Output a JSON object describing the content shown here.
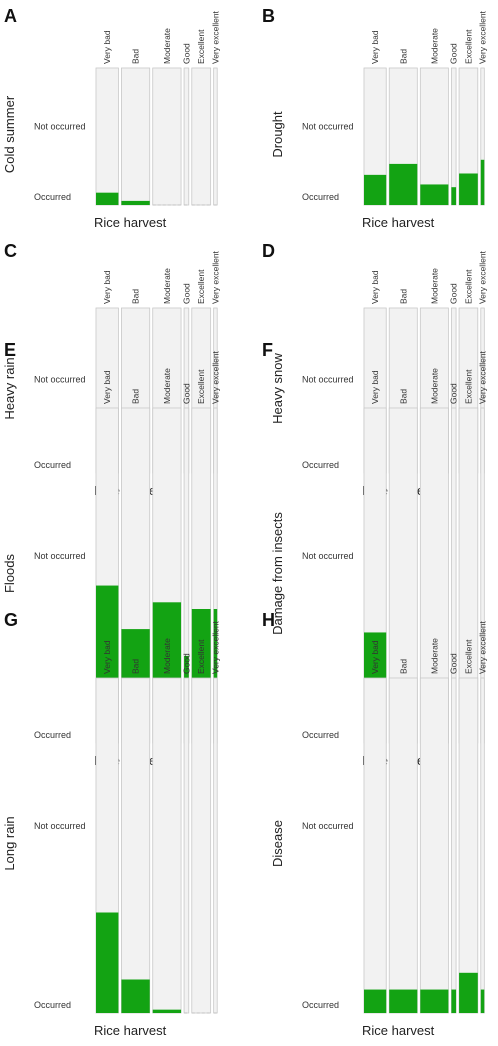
{
  "x_axis_label": "Rice harvest",
  "y_categories": {
    "top": "Not occurred",
    "bottom": "Occurred"
  },
  "colors": {
    "occurred": "#13a313",
    "not_occurred": "#f2f2f2",
    "cell_border": "#c8c8c8"
  },
  "chart_data": [
    {
      "type": "mosaic",
      "panel": "A",
      "ylabel": "Cold summer",
      "xlabel": "Rice harvest",
      "categories": [
        "Very bad",
        "Bad",
        "Moderate",
        "Good",
        "Excellent",
        "Very excellent"
      ],
      "category_share": [
        0.19,
        0.24,
        0.24,
        0.04,
        0.16,
        0.03
      ],
      "occurred_fraction": [
        0.09,
        0.03,
        0.0,
        0.0,
        0.0,
        0.0
      ],
      "series_labels": [
        "Not occurred",
        "Occurred"
      ]
    },
    {
      "type": "mosaic",
      "panel": "B",
      "ylabel": "Drought",
      "xlabel": "Rice harvest",
      "categories": [
        "Very bad",
        "Bad",
        "Moderate",
        "Good",
        "Excellent",
        "Very excellent"
      ],
      "category_share": [
        0.19,
        0.24,
        0.24,
        0.04,
        0.16,
        0.03
      ],
      "occurred_fraction": [
        0.22,
        0.3,
        0.15,
        0.13,
        0.23,
        0.33
      ],
      "series_labels": [
        "Not occurred",
        "Occurred"
      ]
    },
    {
      "type": "mosaic",
      "panel": "C",
      "ylabel": "Heavy rain",
      "xlabel": "Rice harvest",
      "categories": [
        "Very bad",
        "Bad",
        "Moderate",
        "Good",
        "Excellent",
        "Very excellent"
      ],
      "category_share": [
        0.19,
        0.24,
        0.24,
        0.04,
        0.16,
        0.03
      ],
      "occurred_fraction": [
        0.05,
        0.02,
        0.15,
        0.05,
        0.05,
        0.26
      ],
      "series_labels": [
        "Not occurred",
        "Occurred"
      ]
    },
    {
      "type": "mosaic",
      "panel": "D",
      "ylabel": "Heavy snow",
      "xlabel": "Rice harvest",
      "categories": [
        "Very bad",
        "Bad",
        "Moderate",
        "Good",
        "Excellent",
        "Very excellent"
      ],
      "category_share": [
        0.19,
        0.24,
        0.24,
        0.04,
        0.16,
        0.03
      ],
      "occurred_fraction": [
        0.11,
        0.04,
        0.23,
        0.13,
        0.16,
        0.26
      ],
      "series_labels": [
        "Not occurred",
        "Occurred"
      ]
    },
    {
      "type": "mosaic",
      "panel": "E",
      "ylabel": "Floods",
      "xlabel": "Rice harvest",
      "categories": [
        "Very bad",
        "Bad",
        "Moderate",
        "Good",
        "Excellent",
        "Very excellent"
      ],
      "category_share": [
        0.19,
        0.24,
        0.24,
        0.04,
        0.16,
        0.03
      ],
      "occurred_fraction": [
        0.47,
        0.34,
        0.42,
        0.26,
        0.4,
        0.4
      ],
      "series_labels": [
        "Not occurred",
        "Occurred"
      ]
    },
    {
      "type": "mosaic",
      "panel": "F",
      "ylabel": "Damage from insects",
      "xlabel": "Rice harvest",
      "categories": [
        "Very bad",
        "Bad",
        "Moderate",
        "Good",
        "Excellent",
        "Very excellent"
      ],
      "category_share": [
        0.19,
        0.24,
        0.24,
        0.04,
        0.16,
        0.03
      ],
      "occurred_fraction": [
        0.33,
        0.1,
        0.06,
        0.0,
        0.04,
        0.07
      ],
      "series_labels": [
        "Not occurred",
        "Occurred"
      ]
    },
    {
      "type": "mosaic",
      "panel": "G",
      "ylabel": "Long rain",
      "xlabel": "Rice harvest",
      "categories": [
        "Very bad",
        "Bad",
        "Moderate",
        "Good",
        "Excellent",
        "Very excellent"
      ],
      "category_share": [
        0.19,
        0.24,
        0.24,
        0.04,
        0.16,
        0.03
      ],
      "occurred_fraction": [
        0.3,
        0.1,
        0.01,
        0.0,
        0.0,
        0.0
      ],
      "series_labels": [
        "Not occurred",
        "Occurred"
      ]
    },
    {
      "type": "mosaic",
      "panel": "H",
      "ylabel": "Disease",
      "xlabel": "Rice harvest",
      "categories": [
        "Very bad",
        "Bad",
        "Moderate",
        "Good",
        "Excellent",
        "Very excellent"
      ],
      "category_share": [
        0.19,
        0.24,
        0.24,
        0.04,
        0.16,
        0.03
      ],
      "occurred_fraction": [
        0.07,
        0.07,
        0.07,
        0.07,
        0.12,
        0.07
      ],
      "series_labels": [
        "Not occurred",
        "Occurred"
      ]
    }
  ]
}
